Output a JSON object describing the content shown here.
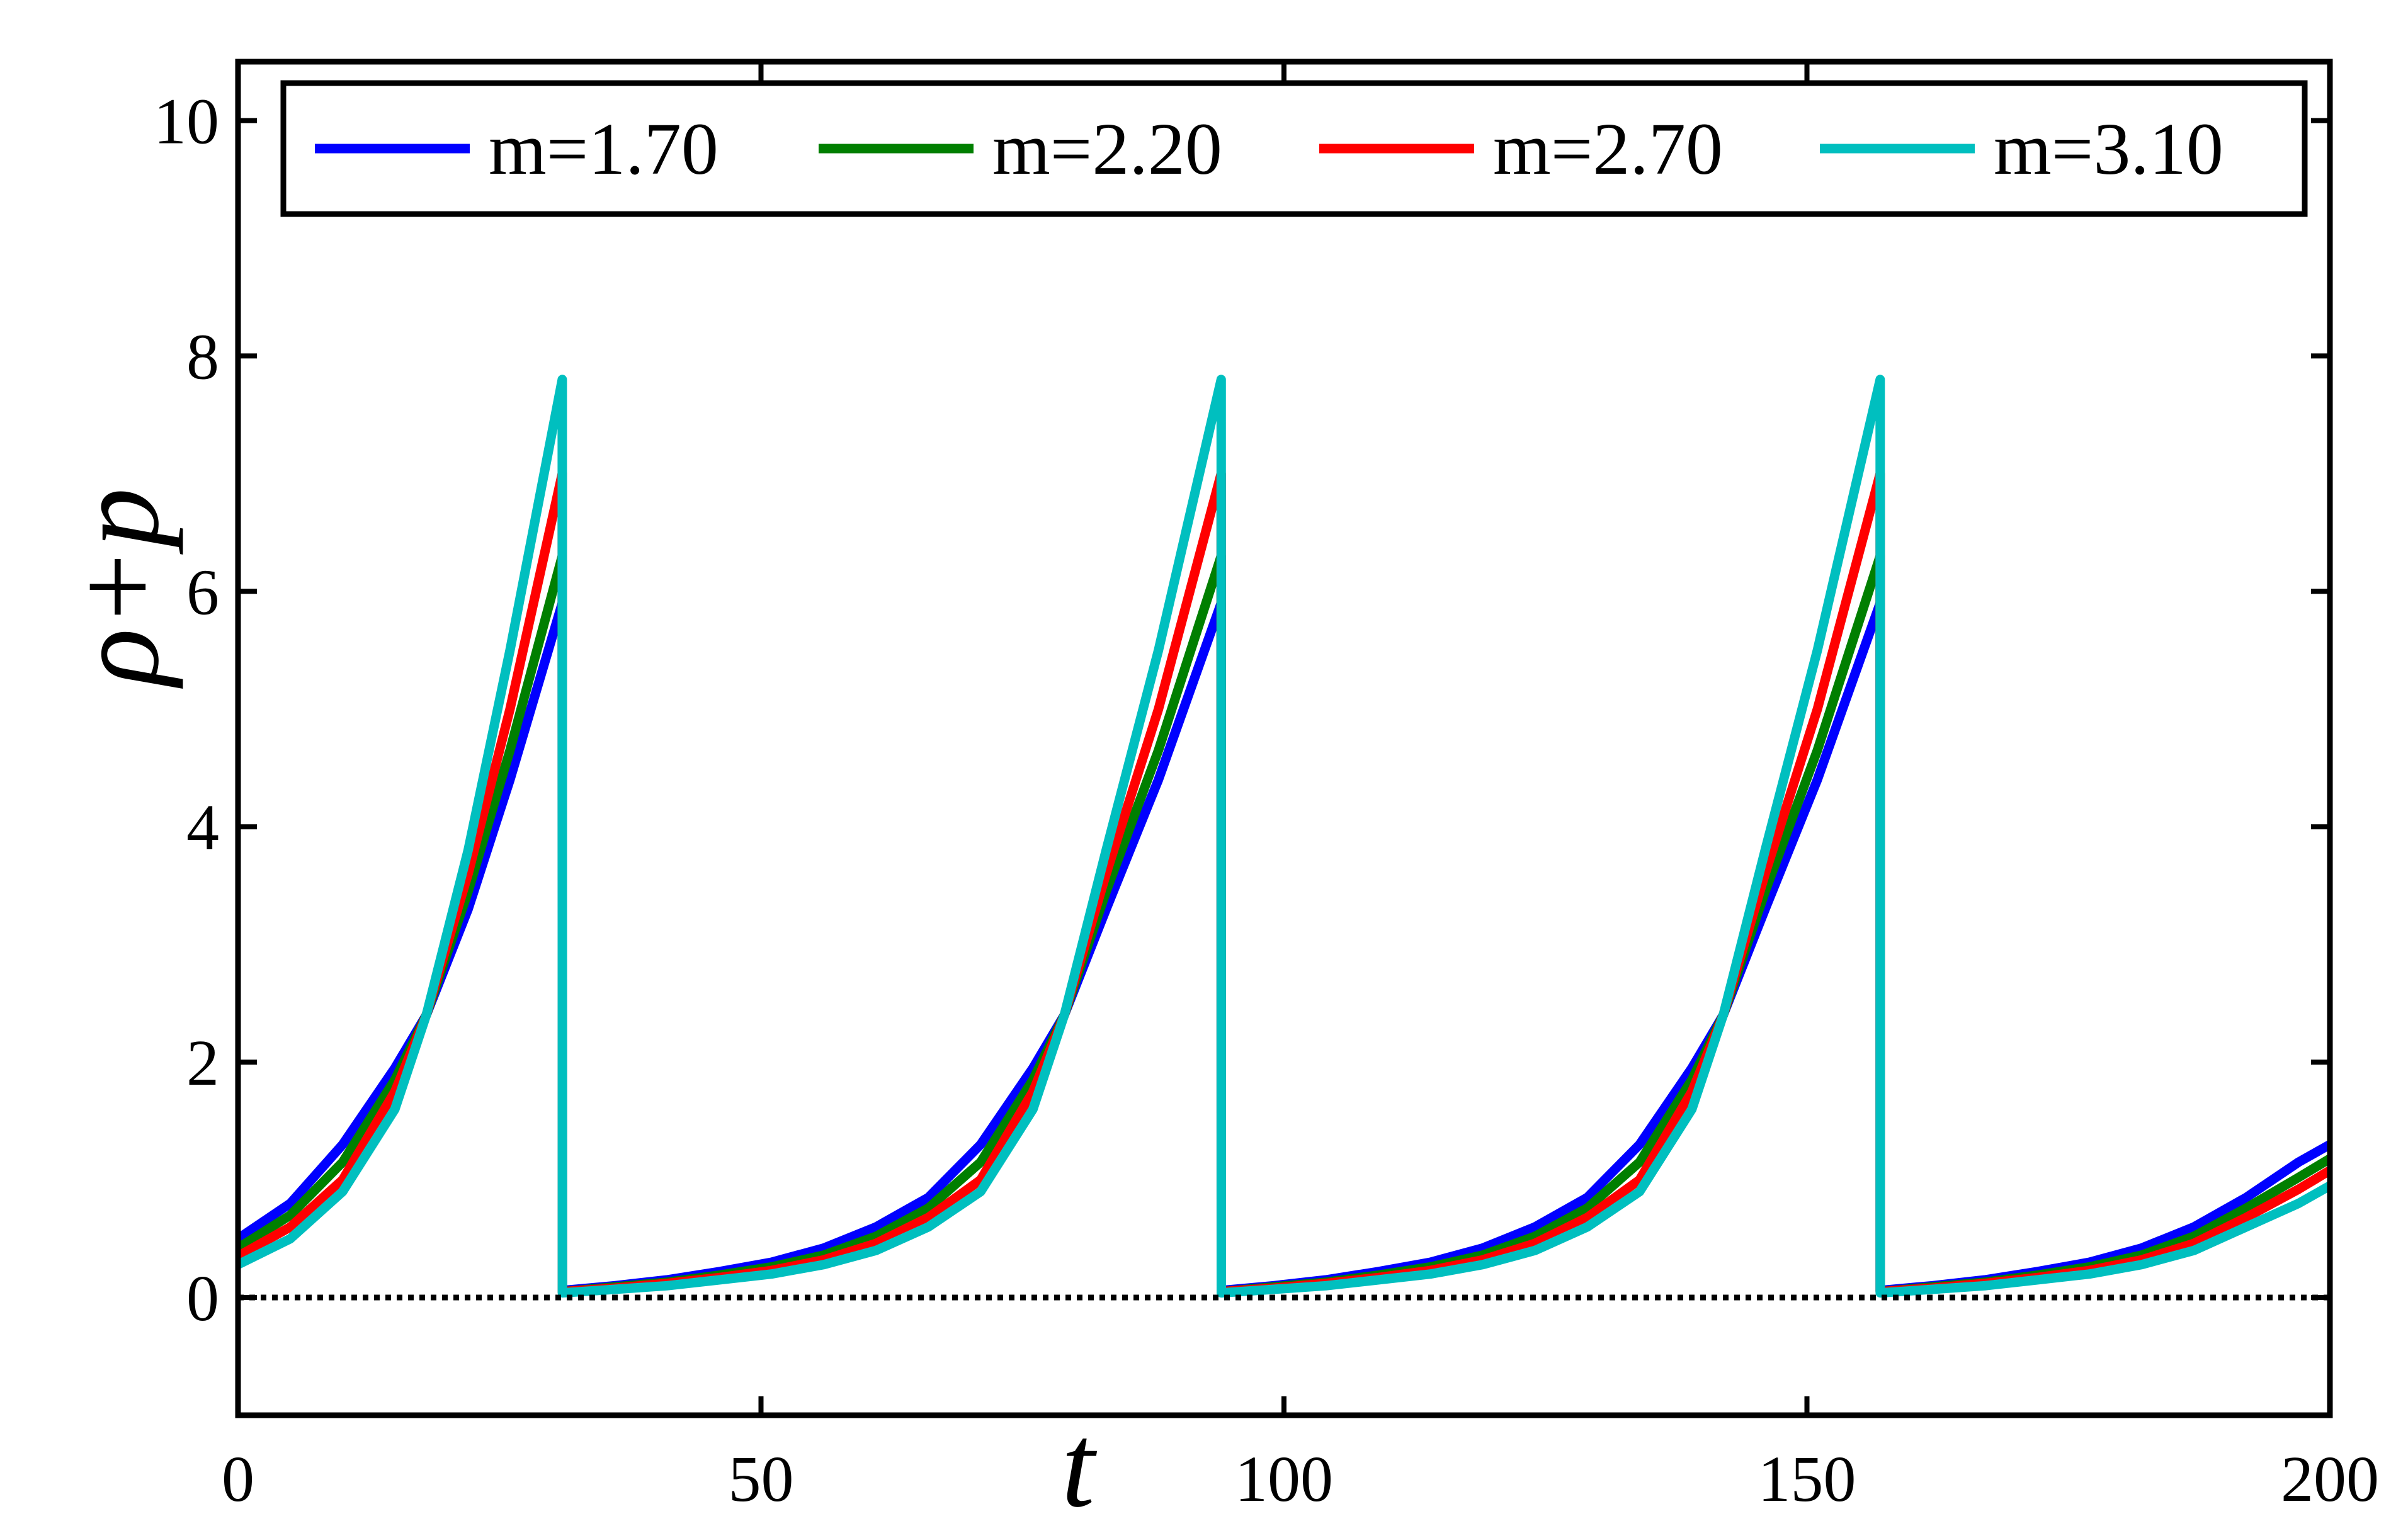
{
  "chart_data": {
    "type": "line",
    "title": "",
    "xlabel": "t",
    "ylabel": "ρ+p",
    "xlim": [
      0,
      200
    ],
    "ylim": [
      -1,
      10.5
    ],
    "xticks": [
      0,
      50,
      100,
      150,
      200
    ],
    "yticks": [
      0,
      2,
      4,
      6,
      8,
      10
    ],
    "grid": false,
    "legend_position": "top",
    "reference_line": {
      "y": 0,
      "style": "dotted",
      "color": "#000000"
    },
    "series": [
      {
        "name": "m=1.70",
        "color": "#0000ff",
        "x": [
          0,
          5,
          10,
          15,
          18,
          22,
          26,
          31,
          31.01,
          36,
          41,
          46,
          51,
          56,
          61,
          66,
          71,
          76,
          79,
          83,
          88,
          94,
          94.01,
          99,
          104,
          109,
          114,
          119,
          124,
          129,
          134,
          139,
          142,
          146,
          151,
          157,
          157.01,
          162,
          167,
          172,
          177,
          182,
          187,
          192,
          197,
          200
        ],
        "y": [
          0.5,
          0.8,
          1.3,
          1.95,
          2.4,
          3.3,
          4.4,
          5.9,
          0.06,
          0.1,
          0.15,
          0.22,
          0.3,
          0.42,
          0.6,
          0.85,
          1.3,
          1.95,
          2.4,
          3.3,
          4.4,
          5.9,
          0.06,
          0.1,
          0.15,
          0.22,
          0.3,
          0.42,
          0.6,
          0.85,
          1.3,
          1.95,
          2.4,
          3.3,
          4.4,
          5.9,
          0.06,
          0.1,
          0.15,
          0.22,
          0.3,
          0.42,
          0.6,
          0.85,
          1.15,
          1.3
        ]
      },
      {
        "name": "m=2.20",
        "color": "#007f00",
        "x": [
          0,
          5,
          10,
          15,
          18,
          22,
          26,
          31,
          31.01,
          36,
          41,
          46,
          51,
          56,
          61,
          66,
          71,
          76,
          79,
          83,
          88,
          94,
          94.01,
          99,
          104,
          109,
          114,
          119,
          124,
          129,
          134,
          139,
          142,
          146,
          151,
          157,
          157.01,
          162,
          167,
          172,
          177,
          182,
          187,
          192,
          197,
          200
        ],
        "y": [
          0.42,
          0.7,
          1.15,
          1.85,
          2.4,
          3.45,
          4.65,
          6.3,
          0.05,
          0.09,
          0.13,
          0.19,
          0.26,
          0.36,
          0.52,
          0.76,
          1.15,
          1.85,
          2.4,
          3.45,
          4.65,
          6.3,
          0.05,
          0.09,
          0.13,
          0.19,
          0.26,
          0.36,
          0.52,
          0.76,
          1.15,
          1.85,
          2.4,
          3.45,
          4.65,
          6.3,
          0.05,
          0.09,
          0.13,
          0.19,
          0.26,
          0.36,
          0.52,
          0.76,
          1.02,
          1.18
        ]
      },
      {
        "name": "m=2.70",
        "color": "#ff0000",
        "x": [
          0,
          5,
          10,
          15,
          18,
          22,
          26,
          31,
          31.01,
          36,
          41,
          46,
          51,
          56,
          61,
          66,
          71,
          76,
          79,
          83,
          88,
          94,
          94.01,
          99,
          104,
          109,
          114,
          119,
          124,
          129,
          134,
          139,
          142,
          146,
          151,
          157,
          157.01,
          162,
          167,
          172,
          177,
          182,
          187,
          192,
          197,
          200
        ],
        "y": [
          0.35,
          0.6,
          1.0,
          1.75,
          2.4,
          3.6,
          5.0,
          7.0,
          0.05,
          0.08,
          0.12,
          0.17,
          0.23,
          0.32,
          0.46,
          0.68,
          1.0,
          1.75,
          2.4,
          3.6,
          5.0,
          7.0,
          0.05,
          0.08,
          0.12,
          0.17,
          0.23,
          0.32,
          0.46,
          0.68,
          1.0,
          1.75,
          2.4,
          3.6,
          5.0,
          7.0,
          0.05,
          0.08,
          0.12,
          0.17,
          0.23,
          0.32,
          0.46,
          0.68,
          0.92,
          1.08
        ]
      },
      {
        "name": "m=3.10",
        "color": "#00bfbf",
        "x": [
          0,
          5,
          10,
          15,
          18,
          22,
          26,
          31,
          31.01,
          36,
          41,
          46,
          51,
          56,
          61,
          66,
          71,
          76,
          79,
          83,
          88,
          94,
          94.01,
          99,
          104,
          109,
          114,
          119,
          124,
          129,
          134,
          139,
          142,
          146,
          151,
          157,
          157.01,
          162,
          167,
          172,
          177,
          182,
          187,
          192,
          197,
          200
        ],
        "y": [
          0.28,
          0.5,
          0.9,
          1.6,
          2.4,
          3.8,
          5.5,
          7.8,
          0.04,
          0.07,
          0.1,
          0.15,
          0.2,
          0.28,
          0.4,
          0.6,
          0.9,
          1.6,
          2.4,
          3.8,
          5.5,
          7.8,
          0.04,
          0.07,
          0.1,
          0.15,
          0.2,
          0.28,
          0.4,
          0.6,
          0.9,
          1.6,
          2.4,
          3.8,
          5.5,
          7.8,
          0.04,
          0.07,
          0.1,
          0.15,
          0.2,
          0.28,
          0.4,
          0.6,
          0.8,
          0.95
        ]
      }
    ]
  }
}
